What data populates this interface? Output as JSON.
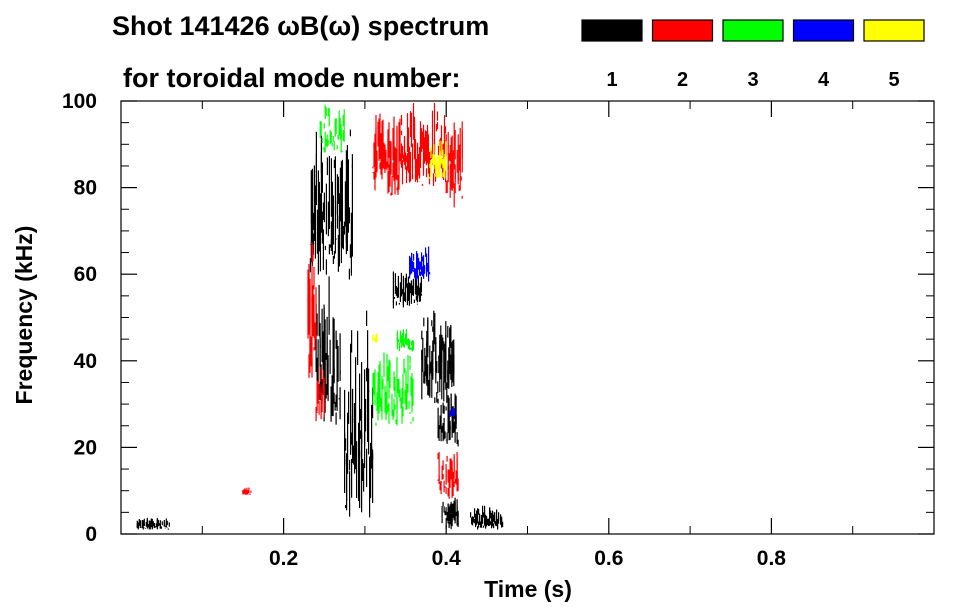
{
  "chart_data": {
    "type": "scatter",
    "title": "Shot 141426 ωB(ω) spectrum",
    "subtitle": "for toroidal mode number:",
    "xlabel": "Time (s)",
    "ylabel": "Frequency (kHz)",
    "xlim": [
      0.0,
      1.0
    ],
    "ylim": [
      0,
      100
    ],
    "x_ticks": [
      "0.2",
      "0.4",
      "0.6",
      "0.8"
    ],
    "x_tick_values": [
      0.2,
      0.4,
      0.6,
      0.8
    ],
    "y_ticks": [
      "0",
      "20",
      "40",
      "60",
      "80",
      "100"
    ],
    "y_tick_values": [
      0,
      20,
      40,
      60,
      80,
      100
    ],
    "grid": false,
    "legend_position": "top-right",
    "legend": [
      {
        "label": "1",
        "color": "#000000"
      },
      {
        "label": "2",
        "color": "#ff0000"
      },
      {
        "label": "3",
        "color": "#00ff00"
      },
      {
        "label": "4",
        "color": "#0000ff"
      },
      {
        "label": "5",
        "color": "#ffff00"
      }
    ],
    "series": [
      {
        "name": "1",
        "color": "#000000",
        "regions": [
          {
            "t": [
              0.233,
              0.285
            ],
            "f": [
              58,
              98
            ]
          },
          {
            "t": [
              0.24,
              0.27
            ],
            "f": [
              25,
              60
            ]
          },
          {
            "t": [
              0.275,
              0.31
            ],
            "f": [
              3,
              55
            ]
          },
          {
            "t": [
              0.335,
              0.37
            ],
            "f": [
              52,
              62
            ]
          },
          {
            "t": [
              0.37,
              0.41
            ],
            "f": [
              30,
              52
            ]
          },
          {
            "t": [
              0.39,
              0.415
            ],
            "f": [
              20,
              35
            ]
          },
          {
            "t": [
              0.395,
              0.415
            ],
            "f": [
              1,
              10
            ]
          },
          {
            "t": [
              0.43,
              0.47
            ],
            "f": [
              1,
              7
            ]
          },
          {
            "t": [
              0.02,
              0.06
            ],
            "f": [
              1,
              4
            ]
          }
        ]
      },
      {
        "name": "2",
        "color": "#ff0000",
        "regions": [
          {
            "t": [
              0.31,
              0.345
            ],
            "f": [
              78,
              100
            ]
          },
          {
            "t": [
              0.345,
              0.4
            ],
            "f": [
              80,
              100
            ]
          },
          {
            "t": [
              0.4,
              0.42
            ],
            "f": [
              73,
              100
            ]
          },
          {
            "t": [
              0.23,
              0.24
            ],
            "f": [
              35,
              72
            ]
          },
          {
            "t": [
              0.24,
              0.25
            ],
            "f": [
              25,
              40
            ]
          },
          {
            "t": [
              0.39,
              0.415
            ],
            "f": [
              8,
              22
            ]
          },
          {
            "t": [
              0.15,
              0.16
            ],
            "f": [
              9,
              11
            ]
          }
        ]
      },
      {
        "name": "3",
        "color": "#00ff00",
        "regions": [
          {
            "t": [
              0.31,
              0.36
            ],
            "f": [
              25,
              44
            ]
          },
          {
            "t": [
              0.245,
              0.275
            ],
            "f": [
              88,
              100
            ]
          },
          {
            "t": [
              0.34,
              0.36
            ],
            "f": [
              42,
              48
            ]
          }
        ]
      },
      {
        "name": "4",
        "color": "#0000ff",
        "regions": [
          {
            "t": [
              0.355,
              0.38
            ],
            "f": [
              58,
              68
            ]
          },
          {
            "t": [
              0.405,
              0.41
            ],
            "f": [
              27,
              30
            ]
          }
        ]
      },
      {
        "name": "5",
        "color": "#ffff00",
        "regions": [
          {
            "t": [
              0.38,
              0.4
            ],
            "f": [
              82,
              92
            ]
          },
          {
            "t": [
              0.31,
              0.315
            ],
            "f": [
              44,
              47
            ]
          }
        ]
      }
    ]
  }
}
